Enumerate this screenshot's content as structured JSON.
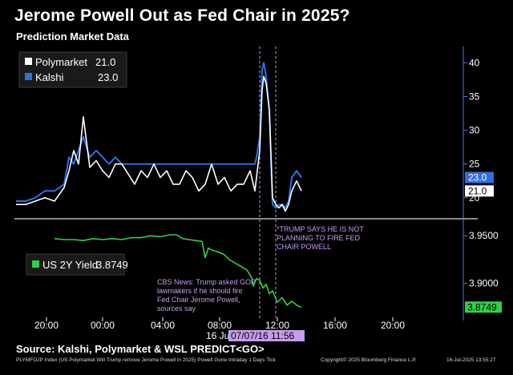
{
  "header": {
    "title": "Jerome Powell Out as Fed Chair in 2025?",
    "subtitle": "Prediction Market Data"
  },
  "footer": {
    "source": "Source: Kalshi, Polymarket & WSL PREDICT<GO>",
    "index_line": "PLYMFOJP Index (US Polymarket Will Trump remove Jerome Powell in 2025) Powell Gone Intraday 1 Days Tick",
    "copyright": "Copyright© 2025 Bloomberg Finance L.P.",
    "timestamp": "16-Jul-2025 13:55:27"
  },
  "colors": {
    "background": "#000000",
    "polymarket": "#ffffff",
    "kalshi": "#2f6fe0",
    "yield": "#2fd04a",
    "annotation": "#c79cf0",
    "axis": "#4a7de0",
    "date_marker_bg": "#c79cf0"
  },
  "chart_data": [
    {
      "type": "line",
      "panel": "top",
      "legend": [
        {
          "name": "Polymarket",
          "value": "21.0"
        },
        {
          "name": "Kalshi",
          "value": "23.0"
        }
      ],
      "y_ticks": [
        "20",
        "25",
        "30",
        "35",
        "40"
      ],
      "ylim": [
        17,
        41
      ],
      "last_value_labels": [
        "23.0",
        "21.0"
      ],
      "series": [
        {
          "name": "Polymarket",
          "color": "#ffffff",
          "t": [
            0,
            0.6,
            1.2,
            1.8,
            2.4,
            3.0,
            3.3,
            3.6,
            3.9,
            4.2,
            4.6,
            5.0,
            5.4,
            5.8,
            6.2,
            6.6,
            7.0,
            7.4,
            7.8,
            8.2,
            8.6,
            9.0,
            9.4,
            9.8,
            10.2,
            10.6,
            11.0,
            11.4,
            11.8,
            12.2,
            12.6,
            13.0,
            13.4,
            13.8,
            14.2,
            14.6,
            14.9,
            15.0,
            15.2,
            15.35,
            15.45,
            15.6,
            15.8,
            16.0,
            16.2,
            16.4,
            16.6,
            16.8,
            17.0,
            17.2,
            17.5,
            17.8
          ],
          "values": [
            19,
            19,
            19.5,
            20,
            19.5,
            21.5,
            24,
            27,
            25,
            32,
            24.5,
            25.5,
            24,
            23,
            25,
            25,
            23.5,
            22,
            24,
            23,
            25,
            23,
            24,
            22,
            22,
            24,
            23,
            21,
            22,
            25,
            22,
            23,
            21,
            22,
            22,
            24,
            21,
            23,
            27,
            36,
            38,
            37,
            33,
            20,
            19,
            18.5,
            19,
            18,
            19,
            21,
            22.5,
            21
          ]
        },
        {
          "name": "Kalshi",
          "color": "#2f6fe0",
          "t": [
            0,
            0.6,
            1.2,
            1.8,
            2.4,
            3.0,
            3.3,
            3.6,
            3.9,
            4.2,
            4.6,
            5.0,
            5.4,
            5.8,
            6.2,
            6.6,
            7.0,
            7.4,
            7.8,
            8.2,
            8.6,
            9.0,
            9.4,
            9.8,
            10.2,
            10.6,
            11.0,
            11.4,
            11.8,
            12.2,
            12.6,
            13.0,
            13.4,
            13.8,
            14.2,
            14.6,
            14.9,
            15.0,
            15.2,
            15.35,
            15.45,
            15.6,
            15.8,
            16.0,
            16.2,
            16.4,
            16.6,
            16.8,
            17.0,
            17.2,
            17.5,
            17.8
          ],
          "values": [
            19.5,
            19.5,
            20,
            21,
            21,
            22,
            26,
            25,
            27,
            29,
            26,
            27,
            26,
            25,
            26,
            25,
            25,
            25,
            25,
            25,
            25,
            25,
            25,
            25,
            25,
            25,
            25,
            25,
            25,
            25,
            25,
            25,
            25,
            25,
            25,
            25,
            25,
            26,
            29,
            39,
            40,
            38,
            33,
            19,
            18.5,
            19,
            19,
            18.5,
            19.5,
            23,
            24,
            23
          ]
        }
      ]
    },
    {
      "type": "line",
      "panel": "bottom",
      "legend": [
        {
          "name": "US 2Y Yield",
          "value": "3.8749"
        }
      ],
      "y_ticks": [
        "3.9000",
        "3.9500"
      ],
      "ylim": [
        3.865,
        3.962
      ],
      "last_value_label": "3.8749",
      "series": [
        {
          "name": "US 2Y Yield",
          "color": "#2fd04a",
          "t": [
            2.4,
            3.0,
            3.6,
            4.2,
            4.8,
            5.4,
            6.0,
            6.6,
            7.2,
            7.8,
            8.4,
            9.0,
            9.6,
            10.0,
            10.4,
            10.8,
            11.2,
            11.6,
            11.8,
            12.0,
            12.2,
            12.6,
            13.0,
            13.3,
            13.6,
            14.0,
            14.4,
            14.7,
            14.8,
            15.0,
            15.2,
            15.4,
            15.6,
            15.8,
            16.0,
            16.3,
            16.6,
            16.9,
            17.2,
            17.6,
            17.8
          ],
          "values": [
            3.947,
            3.946,
            3.946,
            3.945,
            3.947,
            3.946,
            3.947,
            3.946,
            3.948,
            3.948,
            3.95,
            3.949,
            3.951,
            3.951,
            3.947,
            3.946,
            3.945,
            3.944,
            3.927,
            3.937,
            3.935,
            3.933,
            3.93,
            3.925,
            3.922,
            3.918,
            3.914,
            3.906,
            3.897,
            3.905,
            3.903,
            3.895,
            3.899,
            3.889,
            3.892,
            3.88,
            3.885,
            3.877,
            3.881,
            3.876,
            3.8749
          ]
        }
      ]
    },
    {
      "type": "axis",
      "x_tick_labels": [
        "20:00",
        "00:00",
        "04:00",
        "08:00",
        "12:00",
        "16:00",
        "20:00"
      ],
      "date_label": "16 Ju",
      "date_marker": "07/07/16 11:56",
      "annotations": [
        "*TRUMP SAYS HE IS NOT PLANNING TO FIRE FED CHAIR POWELL",
        "CBS News: Trump asked GOP lawmakers if he should fire Fed Chair Jerome Powell, sources say"
      ]
    }
  ]
}
